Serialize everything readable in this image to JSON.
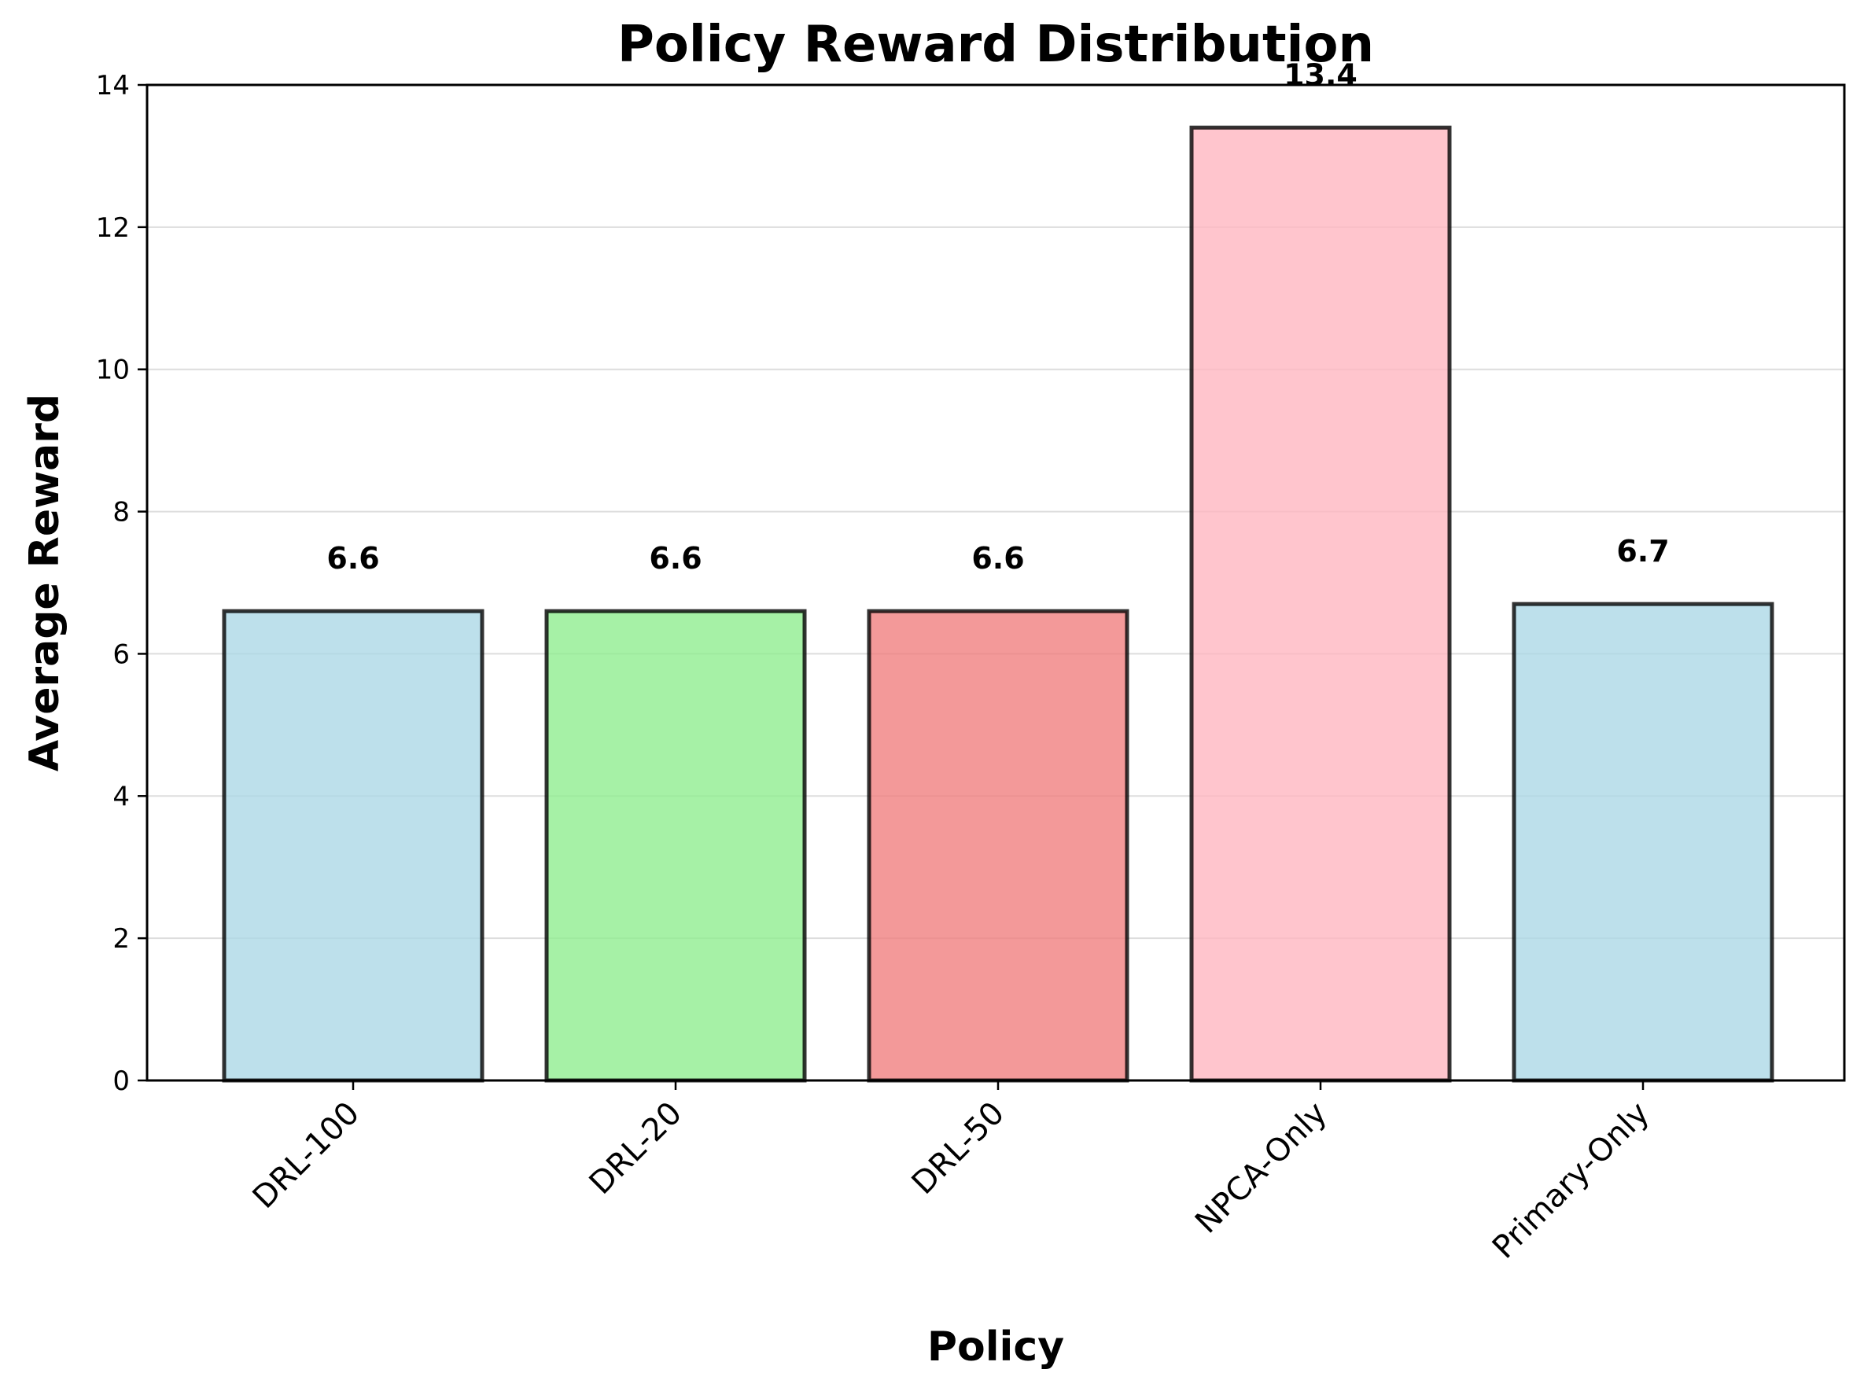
{
  "chart_data": {
    "type": "bar",
    "title": "Policy Reward Distribution",
    "xlabel": "Policy",
    "ylabel": "Average Reward",
    "categories": [
      "DRL-100",
      "DRL-20",
      "DRL-50",
      "NPCA-Only",
      "Primary-Only"
    ],
    "values": [
      6.6,
      6.6,
      6.6,
      13.4,
      6.7
    ],
    "data_labels": [
      "6.6",
      "6.6",
      "6.6",
      "13.4",
      "6.7"
    ],
    "colors": [
      "#add8e6",
      "#90ee90",
      "#f08080",
      "#ffb6c1",
      "#add8e6"
    ],
    "edge_color": "#000000",
    "ylim": [
      0,
      14
    ],
    "yticks": [
      0,
      2,
      4,
      6,
      8,
      10,
      12,
      14
    ],
    "ytick_labels": [
      "0",
      "2",
      "4",
      "6",
      "8",
      "10",
      "12",
      "14"
    ],
    "grid": "y",
    "legend": "none"
  }
}
